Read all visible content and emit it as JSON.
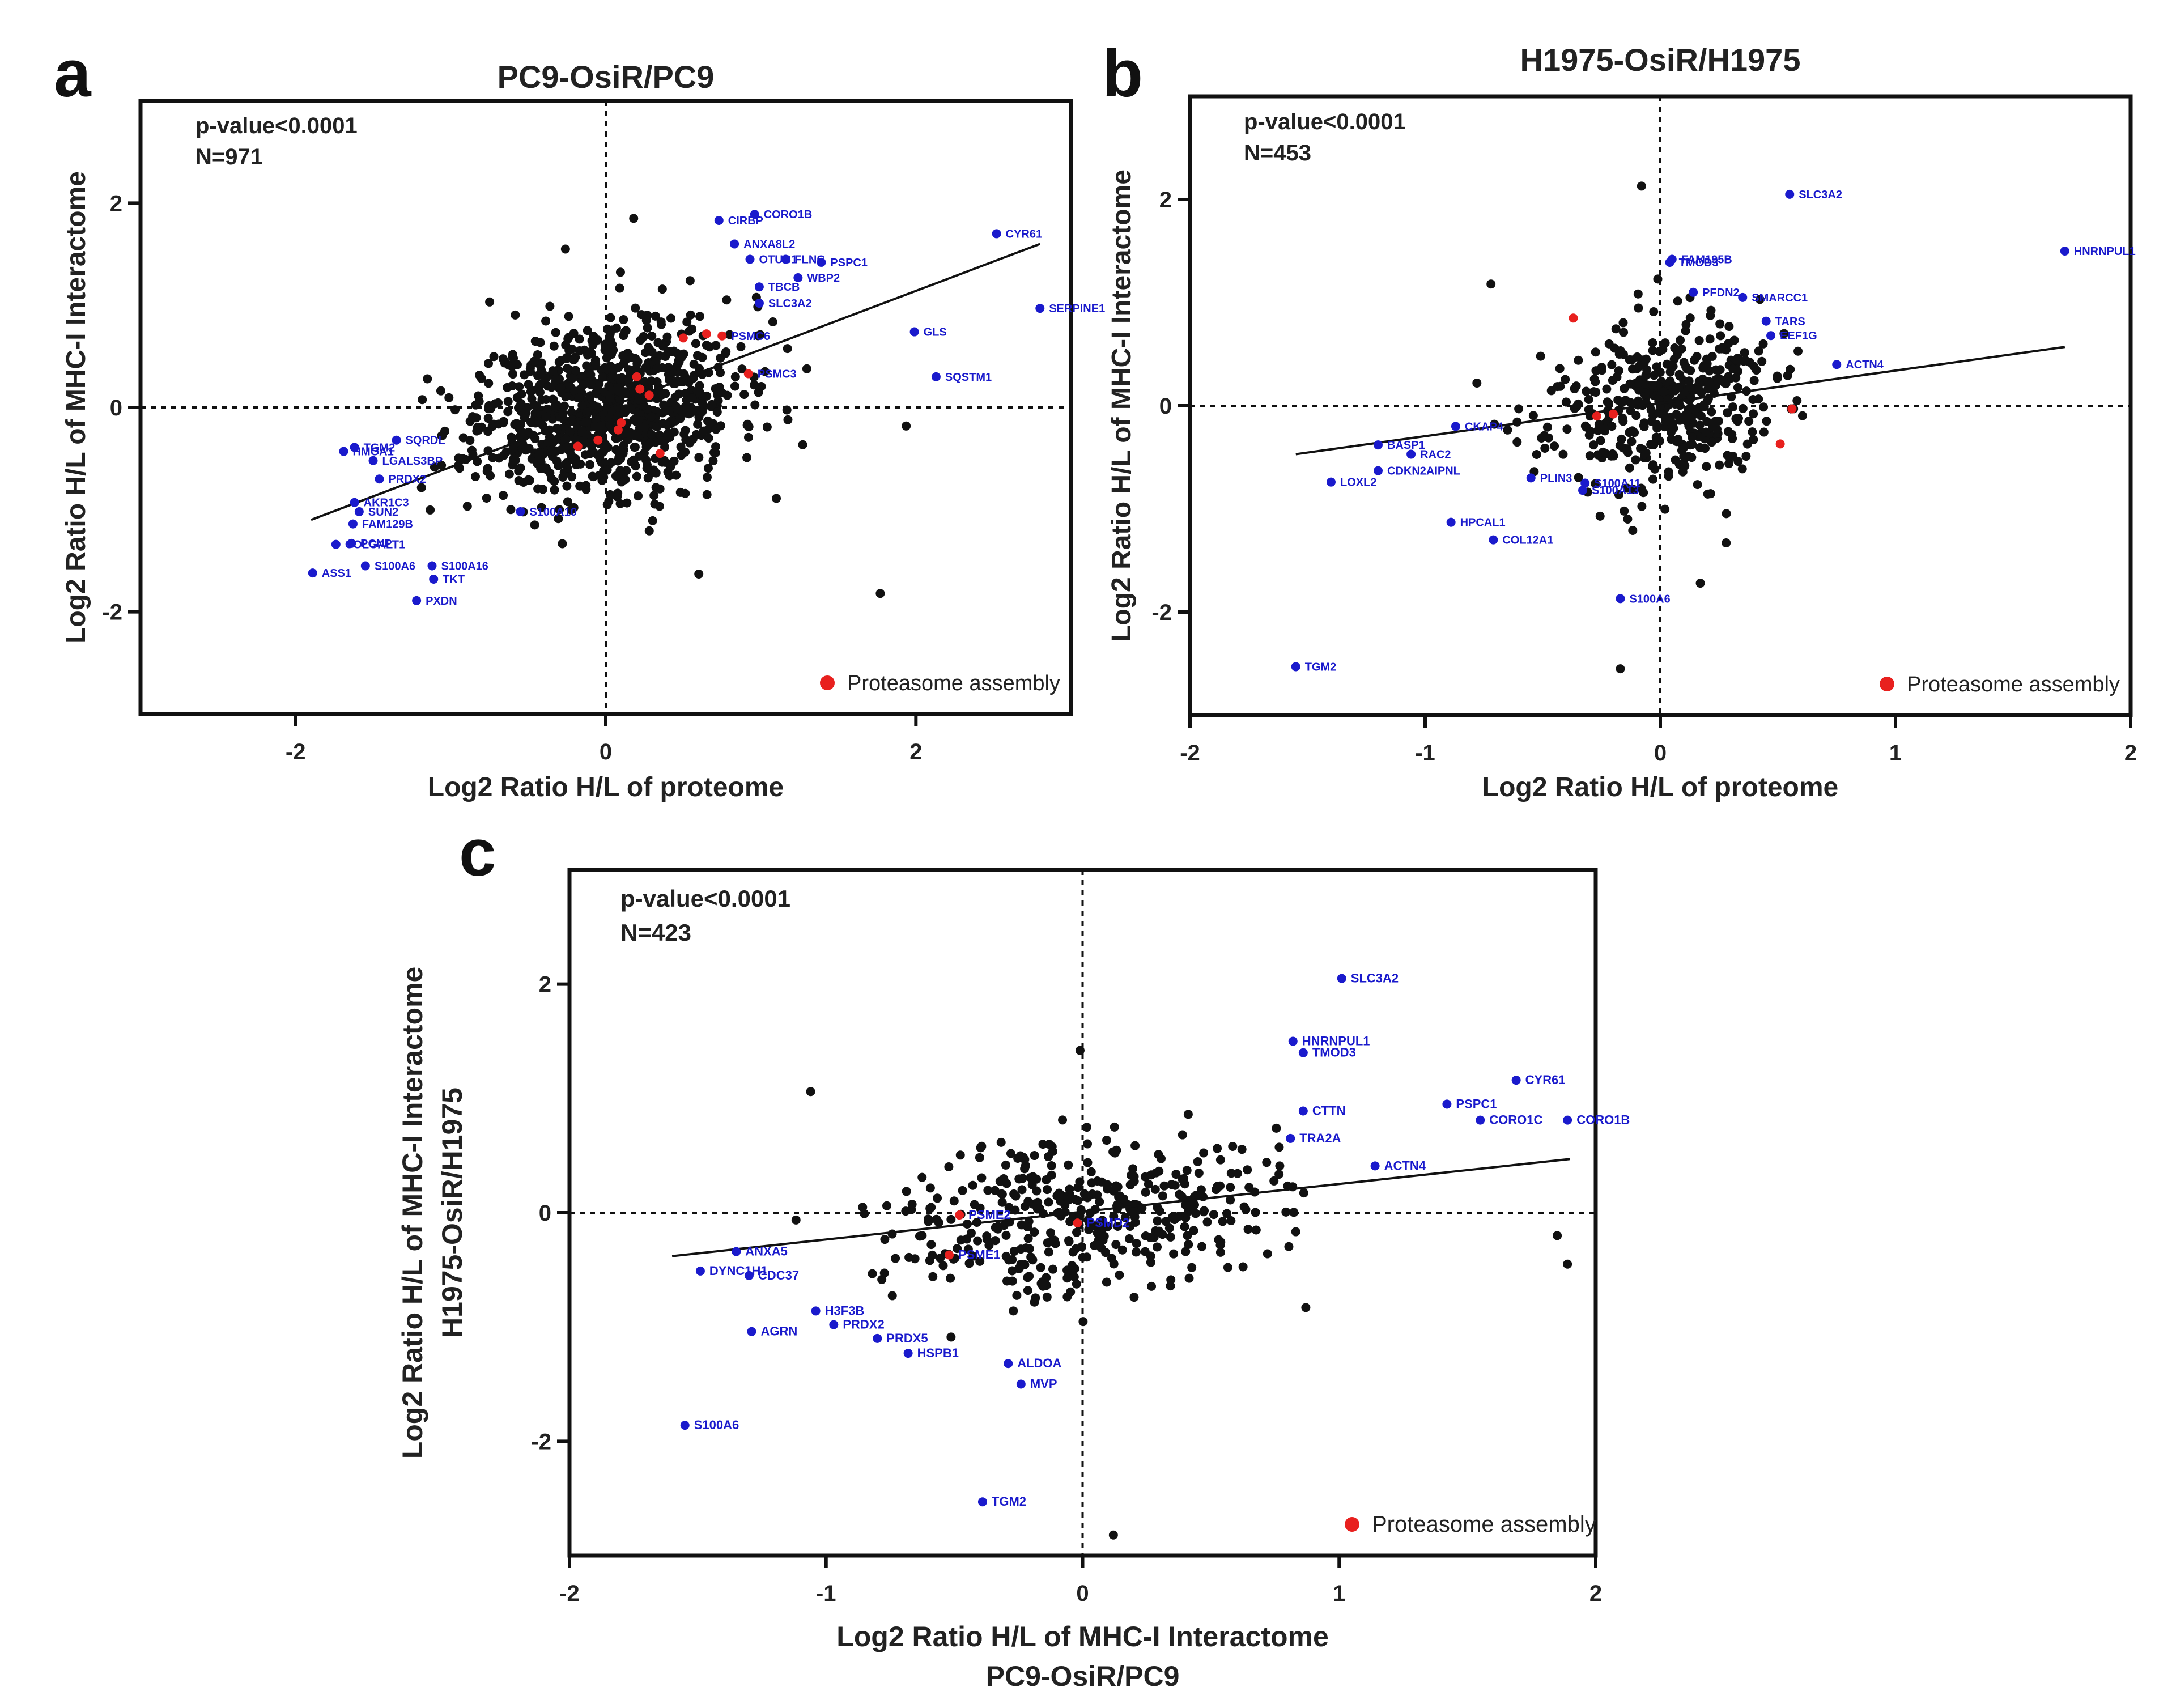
{
  "chart_data": [
    {
      "id": "a",
      "type": "scatter",
      "panel_letter": "a",
      "title": "PC9-OsiR/PC9",
      "xlabel": [
        "Log2 Ratio H/L of proteome"
      ],
      "ylabel": [
        "Log2 Ratio H/L of MHC-I Interactome"
      ],
      "xlim": [
        -3,
        3
      ],
      "ylim": [
        -3,
        3
      ],
      "xticks": [
        -2,
        0,
        2
      ],
      "yticks": [
        -2,
        0,
        2
      ],
      "stats": [
        "p-value<0.0001",
        "N=971"
      ],
      "legend": {
        "label": "Proteasome assembly",
        "color": "#e8201e",
        "position": "bottom-right"
      },
      "n_background": 971,
      "background_seed": 11,
      "background_spread": [
        0.42,
        0.42
      ],
      "background_slope": 0.25,
      "regression": {
        "x": [
          -1.9,
          2.8
        ],
        "y": [
          -1.1,
          1.6
        ]
      },
      "labeled_points": [
        {
          "label": "CIRBP",
          "x": 0.73,
          "y": 1.83
        },
        {
          "label": "CORO1B",
          "x": 0.96,
          "y": 1.89
        },
        {
          "label": "ANXA8L2",
          "x": 0.83,
          "y": 1.6
        },
        {
          "label": "OTUB1",
          "x": 0.93,
          "y": 1.45
        },
        {
          "label": "FLNC",
          "x": 1.16,
          "y": 1.45
        },
        {
          "label": "PSPC1",
          "x": 1.39,
          "y": 1.42
        },
        {
          "label": "WBP2",
          "x": 1.24,
          "y": 1.27
        },
        {
          "label": "TBCB",
          "x": 0.99,
          "y": 1.18
        },
        {
          "label": "SLC3A2",
          "x": 0.99,
          "y": 1.02
        },
        {
          "label": "CYR61",
          "x": 2.52,
          "y": 1.7
        },
        {
          "label": "SERPINE1",
          "x": 2.8,
          "y": 0.97
        },
        {
          "label": "GLS",
          "x": 1.99,
          "y": 0.74
        },
        {
          "label": "SQSTM1",
          "x": 2.13,
          "y": 0.3
        },
        {
          "label": "TGM2",
          "x": -1.62,
          "y": -0.39
        },
        {
          "label": "SQRDL",
          "x": -1.35,
          "y": -0.32
        },
        {
          "label": "HMGA1",
          "x": -1.69,
          "y": -0.43
        },
        {
          "label": "LGALS3BP",
          "x": -1.5,
          "y": -0.52
        },
        {
          "label": "PRDX2",
          "x": -1.46,
          "y": -0.7
        },
        {
          "label": "AKR1C3",
          "x": -1.62,
          "y": -0.93
        },
        {
          "label": "SUN2",
          "x": -1.59,
          "y": -1.02
        },
        {
          "label": "FAM129B",
          "x": -1.63,
          "y": -1.14
        },
        {
          "label": "COLGALT1",
          "x": -1.74,
          "y": -1.34
        },
        {
          "label": "PCNP",
          "x": -1.64,
          "y": -1.33
        },
        {
          "label": "ASS1",
          "x": -1.89,
          "y": -1.62
        },
        {
          "label": "S100A6",
          "x": -1.55,
          "y": -1.55
        },
        {
          "label": "S100A10",
          "x": -0.55,
          "y": -1.02
        },
        {
          "label": "S100A16",
          "x": -1.12,
          "y": -1.55
        },
        {
          "label": "TKT",
          "x": -1.11,
          "y": -1.68
        },
        {
          "label": "PXDN",
          "x": -1.22,
          "y": -1.89
        }
      ],
      "red_points": [
        {
          "label": "PSMC6",
          "x": 0.75,
          "y": 0.7
        },
        {
          "label": "PSMC3",
          "x": 0.92,
          "y": 0.33
        },
        {
          "x": 0.5,
          "y": 0.68
        },
        {
          "x": 0.65,
          "y": 0.72
        },
        {
          "x": 0.22,
          "y": 0.18
        },
        {
          "x": 0.28,
          "y": 0.12
        },
        {
          "x": 0.08,
          "y": -0.22
        },
        {
          "x": -0.18,
          "y": -0.38
        },
        {
          "x": -0.05,
          "y": -0.32
        },
        {
          "x": 0.35,
          "y": -0.45
        },
        {
          "x": 0.1,
          "y": -0.15
        },
        {
          "x": 0.2,
          "y": 0.3
        }
      ],
      "black_extras": [
        {
          "x": 1.77,
          "y": -1.82
        },
        {
          "x": 0.6,
          "y": -1.63
        },
        {
          "x": -1.15,
          "y": 0.28
        },
        {
          "x": 0.18,
          "y": 1.85
        },
        {
          "x": -0.26,
          "y": 1.55
        },
        {
          "x": 1.1,
          "y": -0.89
        }
      ]
    },
    {
      "id": "b",
      "type": "scatter",
      "panel_letter": "b",
      "title": "H1975-OsiR/H1975",
      "xlabel": [
        "Log2 Ratio H/L of proteome"
      ],
      "ylabel": [
        "Log2 Ratio H/L of MHC-I Interactome"
      ],
      "xlim": [
        -2,
        2
      ],
      "ylim": [
        -3,
        3
      ],
      "xticks": [
        -2,
        -1,
        0,
        1,
        2
      ],
      "yticks": [
        -2,
        0,
        2
      ],
      "stats": [
        "p-value<0.0001",
        "N=453"
      ],
      "legend": {
        "label": "Proteasome assembly",
        "color": "#e8201e",
        "position": "bottom-right"
      },
      "n_background": 453,
      "background_seed": 23,
      "background_spread": [
        0.24,
        0.4
      ],
      "background_slope": 0.2,
      "regression": {
        "x": [
          -1.55,
          1.72
        ],
        "y": [
          -0.47,
          0.57
        ]
      },
      "labeled_points": [
        {
          "label": "SLC3A2",
          "x": 0.55,
          "y": 2.05
        },
        {
          "label": "HNRNPUL1",
          "x": 1.72,
          "y": 1.5
        },
        {
          "label": "FAM195B",
          "x": 0.05,
          "y": 1.42
        },
        {
          "label": "TMOD3",
          "x": 0.04,
          "y": 1.39
        },
        {
          "label": "PFDN2",
          "x": 0.14,
          "y": 1.1
        },
        {
          "label": "SMARCC1",
          "x": 0.35,
          "y": 1.05
        },
        {
          "label": "TARS",
          "x": 0.45,
          "y": 0.82
        },
        {
          "label": "EEF1G",
          "x": 0.47,
          "y": 0.68
        },
        {
          "label": "ACTN4",
          "x": 0.75,
          "y": 0.4
        },
        {
          "label": "BASP1",
          "x": -1.2,
          "y": -0.38
        },
        {
          "label": "CKAP4",
          "x": -0.87,
          "y": -0.2
        },
        {
          "label": "RAC2",
          "x": -1.06,
          "y": -0.47
        },
        {
          "label": "LOXL2",
          "x": -1.4,
          "y": -0.74
        },
        {
          "label": "CDKN2AIPNL",
          "x": -1.2,
          "y": -0.63
        },
        {
          "label": "PLIN3",
          "x": -0.55,
          "y": -0.7
        },
        {
          "label": "S100A11",
          "x": -0.32,
          "y": -0.75
        },
        {
          "label": "S100A13",
          "x": -0.33,
          "y": -0.82
        },
        {
          "label": "HPCAL1",
          "x": -0.89,
          "y": -1.13
        },
        {
          "label": "COL12A1",
          "x": -0.71,
          "y": -1.3
        },
        {
          "label": "S100A6",
          "x": -0.17,
          "y": -1.87
        },
        {
          "label": "TGM2",
          "x": -1.55,
          "y": -2.53
        }
      ],
      "red_points": [
        {
          "x": -0.37,
          "y": 0.85
        },
        {
          "x": 0.56,
          "y": -0.03
        },
        {
          "x": 0.51,
          "y": -0.37
        },
        {
          "x": -0.27,
          "y": -0.1
        },
        {
          "x": -0.2,
          "y": -0.08
        }
      ],
      "black_extras": [
        {
          "x": -0.08,
          "y": 2.13
        },
        {
          "x": -0.17,
          "y": -2.55
        },
        {
          "x": 0.17,
          "y": -1.72
        },
        {
          "x": 0.28,
          "y": -1.33
        },
        {
          "x": -0.72,
          "y": 1.18
        },
        {
          "x": -0.78,
          "y": 0.22
        }
      ]
    },
    {
      "id": "c",
      "type": "scatter",
      "panel_letter": "c",
      "title": "",
      "xlabel": [
        "Log2 Ratio H/L of MHC-I Interactome",
        "PC9-OsiR/PC9"
      ],
      "ylabel": [
        "Log2 Ratio H/L of MHC-I Interactome",
        "H1975-OsiR/H1975"
      ],
      "xlim": [
        -2,
        2
      ],
      "ylim": [
        -3,
        3
      ],
      "xticks": [
        -2,
        -1,
        0,
        1,
        2
      ],
      "yticks": [
        -2,
        0,
        2
      ],
      "stats": [
        "p-value<0.0001",
        "N=423"
      ],
      "legend": {
        "label": "Proteasome assembly",
        "color": "#e8201e",
        "position": "bottom-right"
      },
      "n_background": 423,
      "background_seed": 37,
      "background_spread": [
        0.36,
        0.34
      ],
      "background_slope": 0.18,
      "regression": {
        "x": [
          -1.6,
          1.9
        ],
        "y": [
          -0.38,
          0.47
        ]
      },
      "labeled_points": [
        {
          "label": "SLC3A2",
          "x": 1.01,
          "y": 2.05
        },
        {
          "label": "HNRNPUL1",
          "x": 0.82,
          "y": 1.5
        },
        {
          "label": "TMOD3",
          "x": 0.86,
          "y": 1.4
        },
        {
          "label": "CTTN",
          "x": 0.86,
          "y": 0.89
        },
        {
          "label": "TRA2A",
          "x": 0.81,
          "y": 0.65
        },
        {
          "label": "ACTN4",
          "x": 1.14,
          "y": 0.41
        },
        {
          "label": "PSPC1",
          "x": 1.42,
          "y": 0.95
        },
        {
          "label": "CORO1C",
          "x": 1.55,
          "y": 0.81
        },
        {
          "label": "CYR61",
          "x": 1.69,
          "y": 1.16
        },
        {
          "label": "CORO1B",
          "x": 1.89,
          "y": 0.81
        },
        {
          "label": "ANXA5",
          "x": -1.35,
          "y": -0.34
        },
        {
          "label": "DYNC1H1",
          "x": -1.49,
          "y": -0.51
        },
        {
          "label": "CDC37",
          "x": -1.3,
          "y": -0.55
        },
        {
          "label": "H3F3B",
          "x": -1.04,
          "y": -0.86
        },
        {
          "label": "PRDX2",
          "x": -0.97,
          "y": -0.98
        },
        {
          "label": "PRDX5",
          "x": -0.8,
          "y": -1.1
        },
        {
          "label": "AGRN",
          "x": -1.29,
          "y": -1.04
        },
        {
          "label": "HSPB1",
          "x": -0.68,
          "y": -1.23
        },
        {
          "label": "ALDOA",
          "x": -0.29,
          "y": -1.32
        },
        {
          "label": "MVP",
          "x": -0.24,
          "y": -1.5
        },
        {
          "label": "S100A6",
          "x": -1.55,
          "y": -1.86
        },
        {
          "label": "TGM2",
          "x": -0.39,
          "y": -2.53
        }
      ],
      "red_points": [
        {
          "label": "PSME2",
          "x": -0.48,
          "y": -0.02
        },
        {
          "label": "PSME1",
          "x": -0.52,
          "y": -0.37
        },
        {
          "label": "PSMD2",
          "x": -0.02,
          "y": -0.09
        }
      ],
      "black_extras": [
        {
          "x": 0.12,
          "y": -2.82
        },
        {
          "x": -1.06,
          "y": 1.06
        },
        {
          "x": -0.01,
          "y": 1.42
        },
        {
          "x": 0.87,
          "y": -0.83
        },
        {
          "x": 1.89,
          "y": -0.45
        },
        {
          "x": 1.85,
          "y": -0.2
        }
      ]
    }
  ]
}
